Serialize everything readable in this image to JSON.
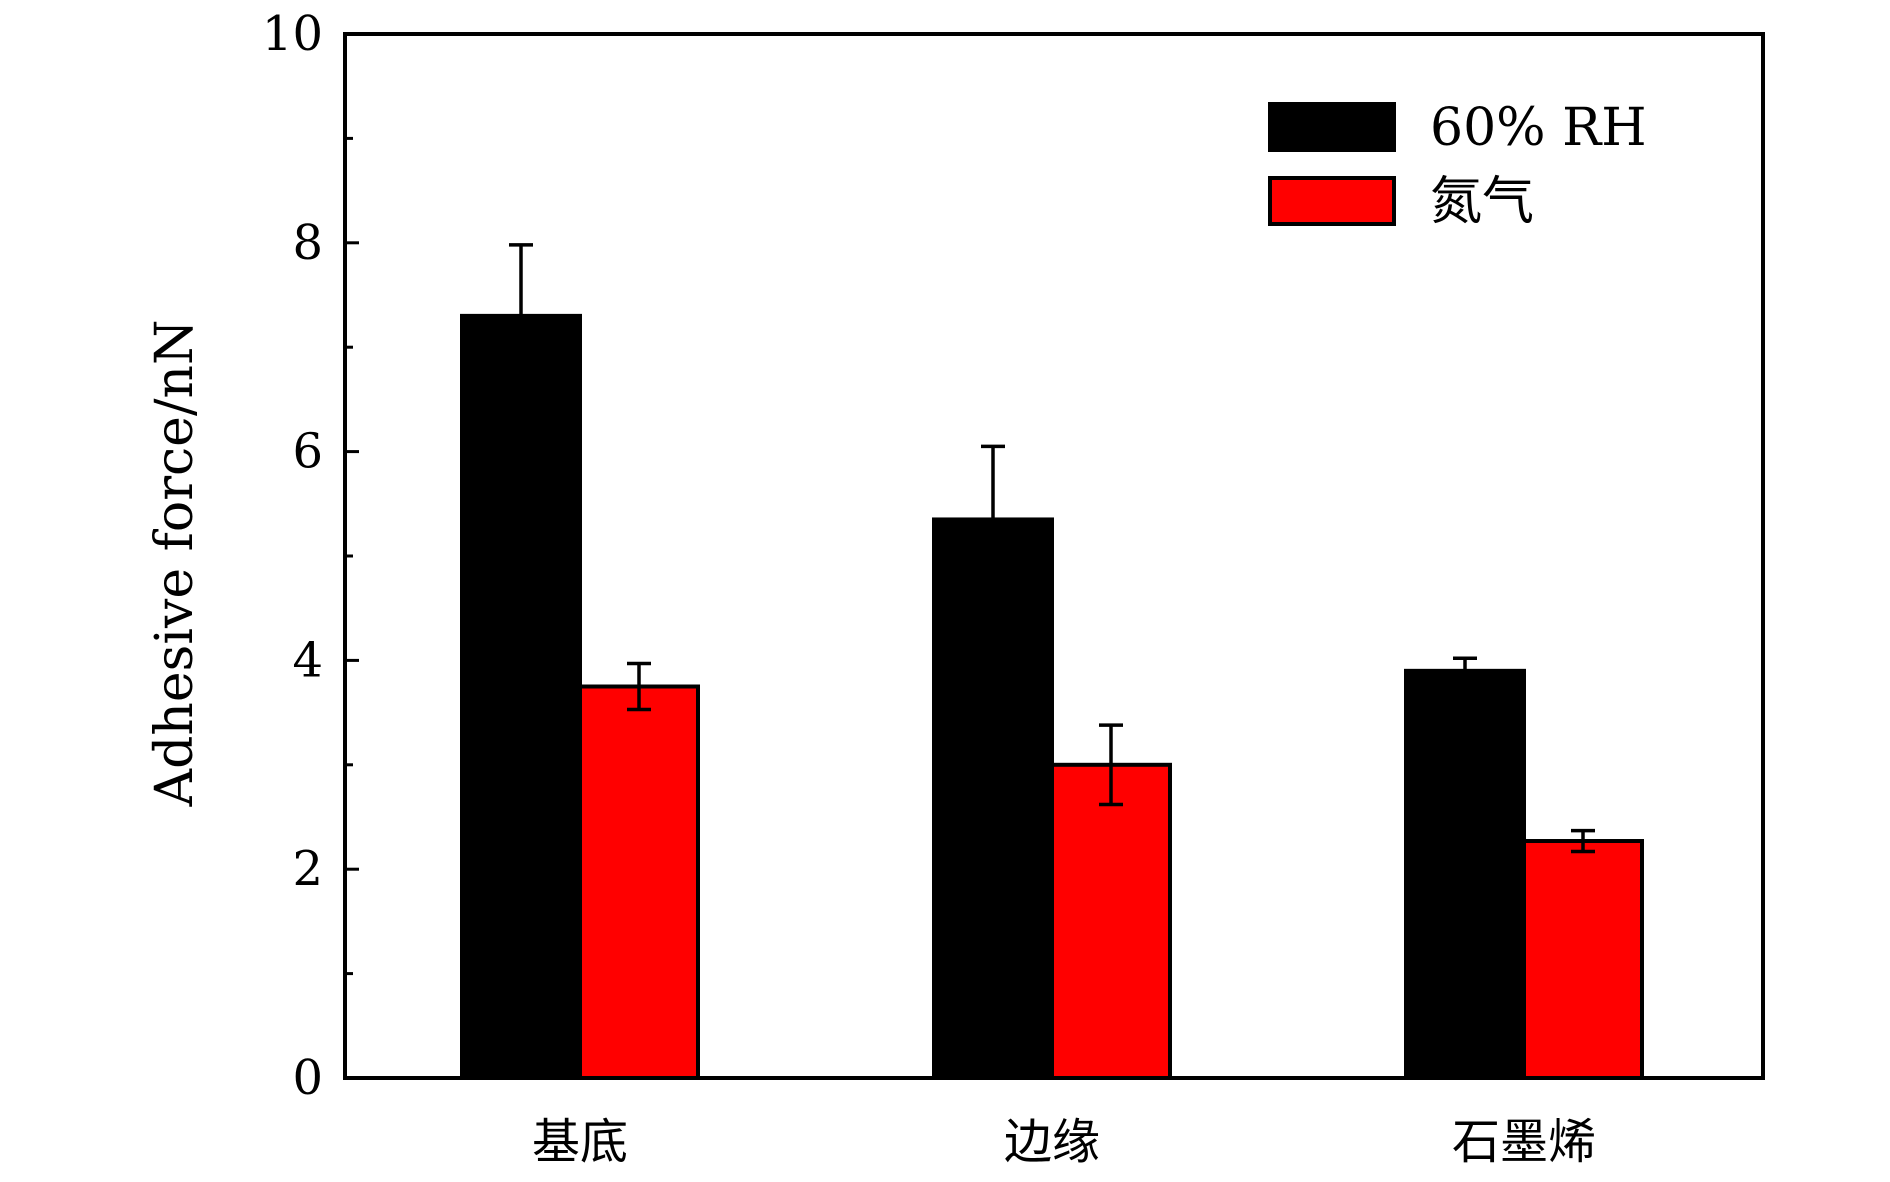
{
  "chart_data": {
    "type": "bar",
    "categories": [
      "基底",
      "边缘",
      "石墨烯"
    ],
    "series": [
      {
        "name": "60% RH",
        "color": "#000000",
        "values": [
          7.3,
          5.35,
          3.9
        ],
        "errors": [
          0.68,
          0.7,
          0.12
        ]
      },
      {
        "name": "氮气",
        "color": "#ff0000",
        "values": [
          3.75,
          3.0,
          2.27
        ],
        "errors": [
          0.22,
          0.38,
          0.1
        ]
      }
    ],
    "xlabel": "",
    "ylabel": "Adhesive force/nN",
    "ylim": [
      0,
      10
    ],
    "yticks": [
      0,
      2,
      4,
      6,
      8,
      10
    ],
    "yticklabels": [
      "0",
      "2",
      "4",
      "6",
      "8",
      "10"
    ],
    "minor_ticks": [
      1,
      3,
      5,
      7,
      9
    ],
    "grid": false,
    "legend_position": "top-right"
  }
}
